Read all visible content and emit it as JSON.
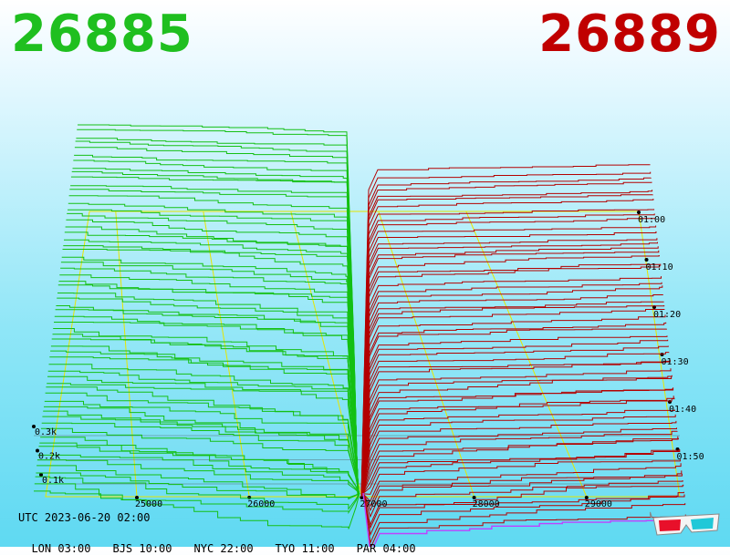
{
  "prices": {
    "bid": "26885",
    "ask": "26889",
    "bid_color": "#1fbf1f",
    "ask_color": "#c00000"
  },
  "footer": {
    "utc": "UTC 2023-06-20 02:00",
    "timezones": [
      {
        "label": "LON 03:00"
      },
      {
        "label": "BJS 10:00"
      },
      {
        "label": "NYC 22:00"
      },
      {
        "label": "TYO 11:00"
      },
      {
        "label": "PAR 04:00"
      }
    ]
  },
  "icons": {
    "glasses": "3d-glasses-icon"
  },
  "chart_data": {
    "type": "area",
    "description_axes": "3D order book depth: x = price, y = cumulative volume, depth = time",
    "x_ticks": [
      25000,
      26000,
      27000,
      28000,
      29000
    ],
    "x_tick_labels": [
      "25000",
      "26000",
      "27000",
      "28000",
      "29000"
    ],
    "volume_ticks": [
      100,
      200,
      300
    ],
    "volume_tick_labels": [
      "0.1k",
      "0.2k",
      "0.3k"
    ],
    "time_ticks": [
      "01:00",
      "01:10",
      "01:20",
      "01:30",
      "01:40",
      "01:50"
    ],
    "mid_price": 26887,
    "bid_color": "#14c014",
    "ask_color": "#b40000",
    "latest_ask_color": "#c040ff"
  }
}
